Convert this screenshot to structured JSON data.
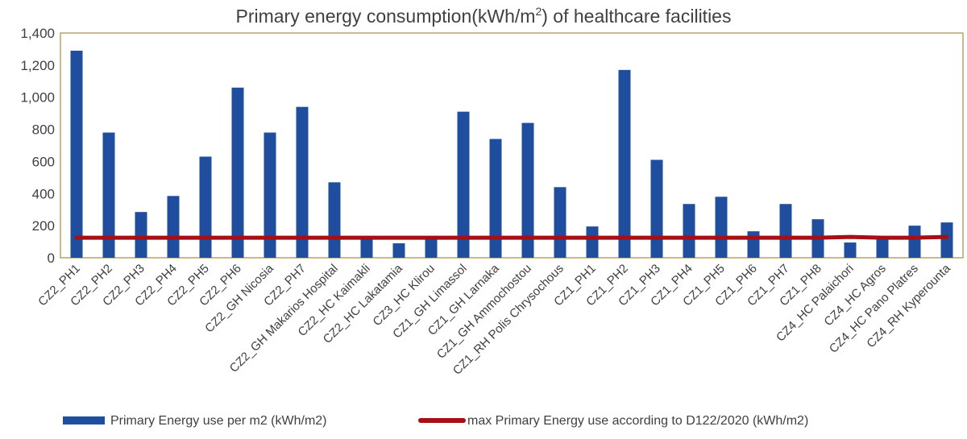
{
  "chart_data": {
    "type": "bar",
    "title_main": "Primary energy consumption(kWh/m",
    "title_sup": "2",
    "title_tail": ") of healthcare facilities",
    "categories": [
      "CZ2_PH1",
      "CZ2_PH2",
      "CZ2_PH3",
      "CZ2_PH4",
      "CZ2_PH5",
      "CZ2_PH6",
      "CZ2_GH Nicosia",
      "CZ2_PH7",
      "CZ2_GH Makarios Hospital",
      "CZ2_HC Kaimakli",
      "CZ2_HC Lakatamia",
      "CZ3_HC Klirou",
      "CZ1_GH Limassol",
      "CZ1_GH Larnaka",
      "CZ1_GH Ammochostou",
      "CZ1_RH Polis Chrysochous",
      "CZ1_PH1",
      "CZ1_PH2",
      "CZ1_PH3",
      "CZ1_PH4",
      "CZ1_PH5",
      "CZ1_PH6",
      "CZ1_PH7",
      "CZ1_PH8",
      "CZ4_HC Palaichori",
      "CZ4_HC Agros",
      "CZ4_HC Pano Platres",
      "CZ4_RH Kyperounta"
    ],
    "series": [
      {
        "name": "Primary Energy use per m2 (kWh/m2)",
        "kind": "bar",
        "color": "#1f4e9f",
        "values": [
          1290,
          780,
          285,
          385,
          630,
          1060,
          780,
          940,
          470,
          125,
          90,
          125,
          910,
          740,
          840,
          440,
          195,
          1170,
          610,
          335,
          380,
          165,
          335,
          240,
          95,
          130,
          200,
          220
        ]
      },
      {
        "name": "max Primary Energy use according to D122/2020 (kWh/m2)",
        "kind": "line",
        "color": "#a50f15",
        "values": [
          125,
          125,
          125,
          125,
          125,
          125,
          125,
          125,
          125,
          125,
          125,
          125,
          125,
          125,
          125,
          125,
          125,
          125,
          125,
          125,
          125,
          125,
          125,
          125,
          130,
          125,
          125,
          130
        ]
      }
    ],
    "ylim": [
      0,
      1400
    ],
    "yticks": [
      0,
      200,
      400,
      600,
      800,
      1000,
      1200,
      1400
    ],
    "ytick_labels": [
      "0",
      "200",
      "400",
      "600",
      "800",
      "1,000",
      "1,200",
      "1,400"
    ],
    "xlabel": "",
    "ylabel": "",
    "grid": false,
    "legend_position": "bottom"
  }
}
